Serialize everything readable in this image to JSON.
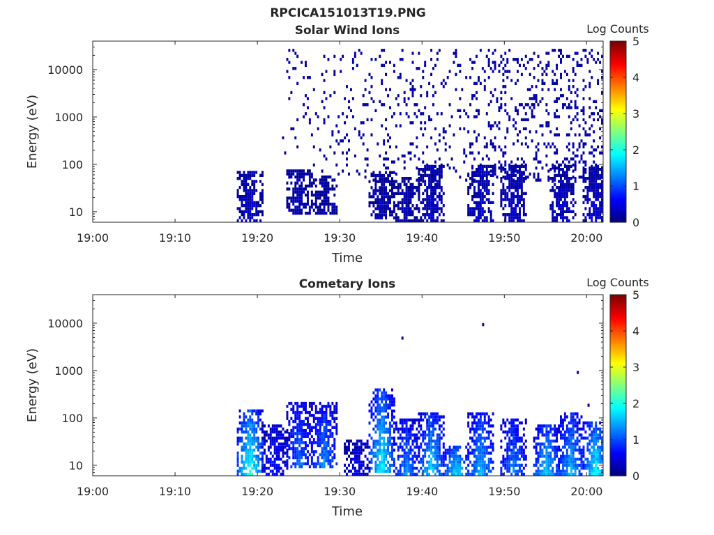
{
  "figure_title": "RPCICA151013T19.PNG",
  "chart_data": [
    {
      "type": "heatmap",
      "title": "Solar Wind Ions",
      "xlabel": "Time",
      "ylabel": "Energy (eV)",
      "yscale": "log",
      "ylim": [
        6,
        40000
      ],
      "xlim": [
        "19:00",
        "20:02"
      ],
      "x_ticks": [
        "19:00",
        "19:10",
        "19:20",
        "19:30",
        "19:40",
        "19:50",
        "20:00"
      ],
      "y_ticks": [
        "10",
        "100",
        "1000",
        "10000"
      ],
      "colorbar": {
        "label": "Log Counts",
        "range": [
          0,
          5
        ],
        "ticks": [
          "0",
          "1",
          "2",
          "3",
          "4",
          "5"
        ],
        "colormap": "jet"
      },
      "background": "#ffffff",
      "events": [
        {
          "t": "19:19",
          "e_min": 6,
          "e_max": 80,
          "level": 0.3
        },
        {
          "t": "19:25",
          "e_min": 10,
          "e_max": 80,
          "level": 0.2
        },
        {
          "t": "19:28",
          "e_min": 10,
          "e_max": 60,
          "level": 0.2
        },
        {
          "t": "19:35",
          "e_min": 8,
          "e_max": 80,
          "level": 0.2
        },
        {
          "t": "19:38",
          "e_min": 6,
          "e_max": 60,
          "level": 0.2
        },
        {
          "t": "19:41",
          "e_min": 6,
          "e_max": 100,
          "level": 0.3
        },
        {
          "t": "19:47",
          "e_min": 6,
          "e_max": 100,
          "level": 0.3
        },
        {
          "t": "19:51",
          "e_min": 6,
          "e_max": 100,
          "level": 0.3
        },
        {
          "t": "19:57",
          "e_min": 6,
          "e_max": 100,
          "level": 0.3
        },
        {
          "t": "20:01",
          "e_min": 6,
          "e_max": 100,
          "level": 0.3
        }
      ],
      "scatter_region": {
        "t_start": "19:23",
        "t_end": "20:02",
        "e_min": 50,
        "e_max": 30000,
        "level": 0.2
      }
    },
    {
      "type": "heatmap",
      "title": "Cometary Ions",
      "xlabel": "Time",
      "ylabel": "Energy (eV)",
      "yscale": "log",
      "ylim": [
        6,
        40000
      ],
      "xlim": [
        "19:00",
        "20:02"
      ],
      "x_ticks": [
        "19:00",
        "19:10",
        "19:20",
        "19:30",
        "19:40",
        "19:50",
        "20:00"
      ],
      "y_ticks": [
        "10",
        "100",
        "1000",
        "10000"
      ],
      "colorbar": {
        "label": "Log Counts",
        "range": [
          0,
          5
        ],
        "ticks": [
          "0",
          "1",
          "2",
          "3",
          "4",
          "5"
        ],
        "colormap": "jet"
      },
      "background": "#ffffff",
      "events": [
        {
          "t": "19:19",
          "e_min": 6,
          "e_max": 160,
          "level": 1.6
        },
        {
          "t": "19:22",
          "e_min": 6,
          "e_max": 80,
          "level": 0.6
        },
        {
          "t": "19:25",
          "e_min": 10,
          "e_max": 250,
          "level": 0.9
        },
        {
          "t": "19:28",
          "e_min": 10,
          "e_max": 220,
          "level": 1.0
        },
        {
          "t": "19:32",
          "e_min": 6,
          "e_max": 40,
          "level": 0.4
        },
        {
          "t": "19:35",
          "e_min": 8,
          "e_max": 450,
          "level": 1.4
        },
        {
          "t": "19:38",
          "e_min": 6,
          "e_max": 100,
          "level": 1.0
        },
        {
          "t": "19:41",
          "e_min": 6,
          "e_max": 150,
          "level": 1.3
        },
        {
          "t": "19:44",
          "e_min": 6,
          "e_max": 30,
          "level": 1.4
        },
        {
          "t": "19:47",
          "e_min": 6,
          "e_max": 150,
          "level": 1.2
        },
        {
          "t": "19:51",
          "e_min": 6,
          "e_max": 100,
          "level": 1.0
        },
        {
          "t": "19:55",
          "e_min": 6,
          "e_max": 80,
          "level": 1.3
        },
        {
          "t": "19:58",
          "e_min": 6,
          "e_max": 150,
          "level": 1.2
        },
        {
          "t": "20:01",
          "e_min": 6,
          "e_max": 90,
          "level": 1.5
        }
      ],
      "isolated_points": [
        {
          "t": "19:37.5",
          "e": 5200,
          "level": 0.1
        },
        {
          "t": "19:47.3",
          "e": 10000,
          "level": 0.1
        },
        {
          "t": "19:58.8",
          "e": 980,
          "level": 0.1
        },
        {
          "t": "20:00.1",
          "e": 200,
          "level": 0.1
        }
      ]
    }
  ]
}
